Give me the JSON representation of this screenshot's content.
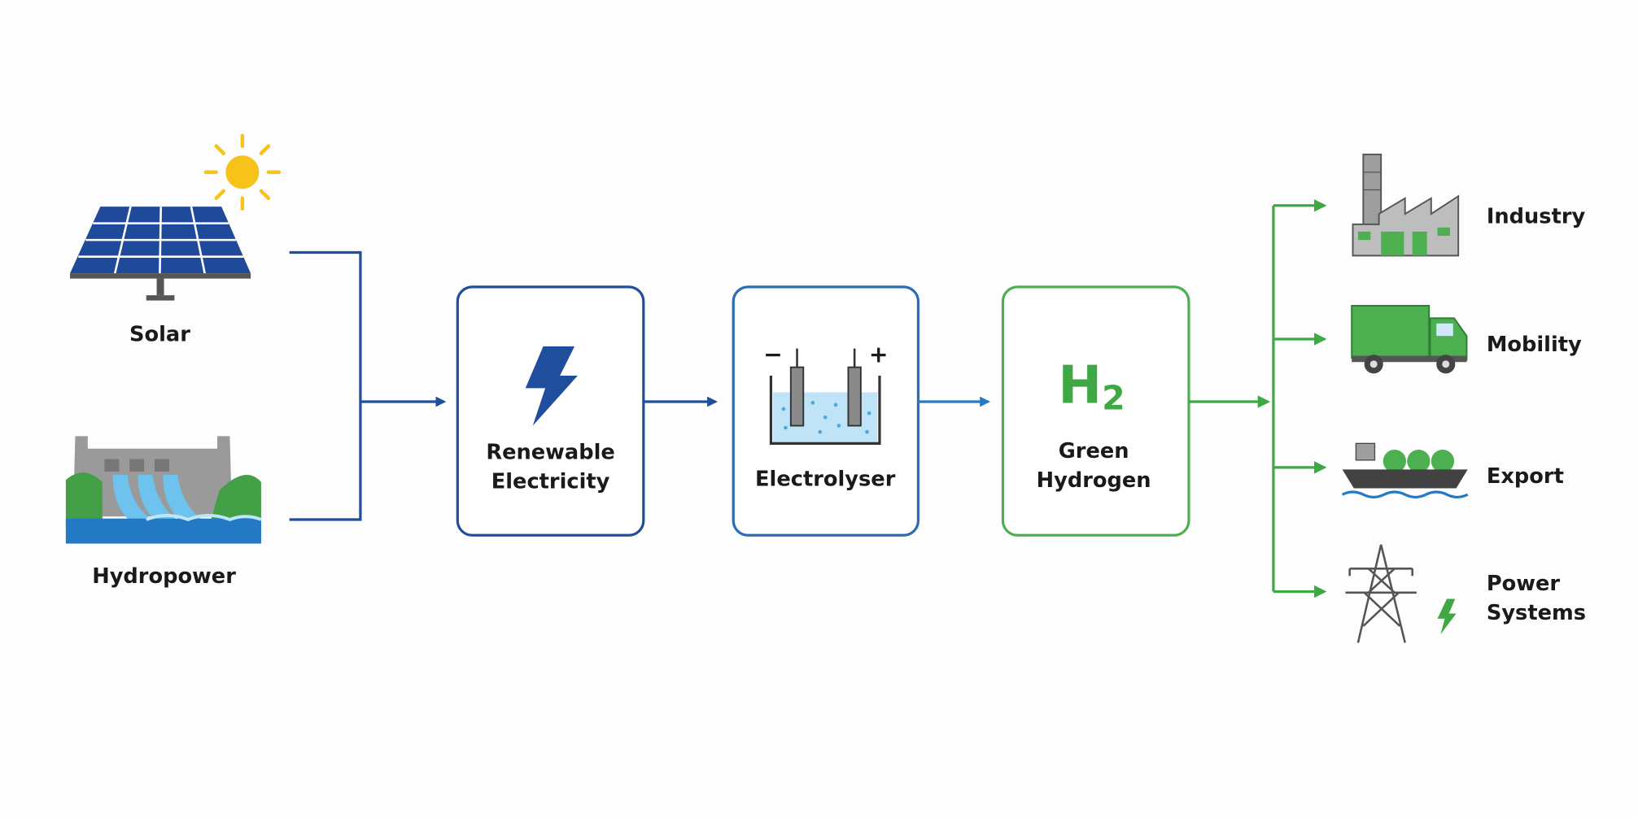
{
  "sources": [
    {
      "label": "Solar"
    },
    {
      "label": "Hydropower"
    }
  ],
  "steps": [
    {
      "lines": [
        "Renewable",
        "Electricity"
      ]
    },
    {
      "signs": [
        "−",
        "+"
      ],
      "lines": [
        "Electrolyser"
      ]
    },
    {
      "symbol": {
        "base": "H",
        "sub": "2"
      },
      "lines": [
        "Green",
        "Hydrogen"
      ]
    }
  ],
  "uses": [
    {
      "lines": [
        "Industry"
      ]
    },
    {
      "lines": [
        "Mobility"
      ]
    },
    {
      "lines": [
        "Export"
      ]
    },
    {
      "lines": [
        "Power",
        "Systems"
      ]
    }
  ]
}
